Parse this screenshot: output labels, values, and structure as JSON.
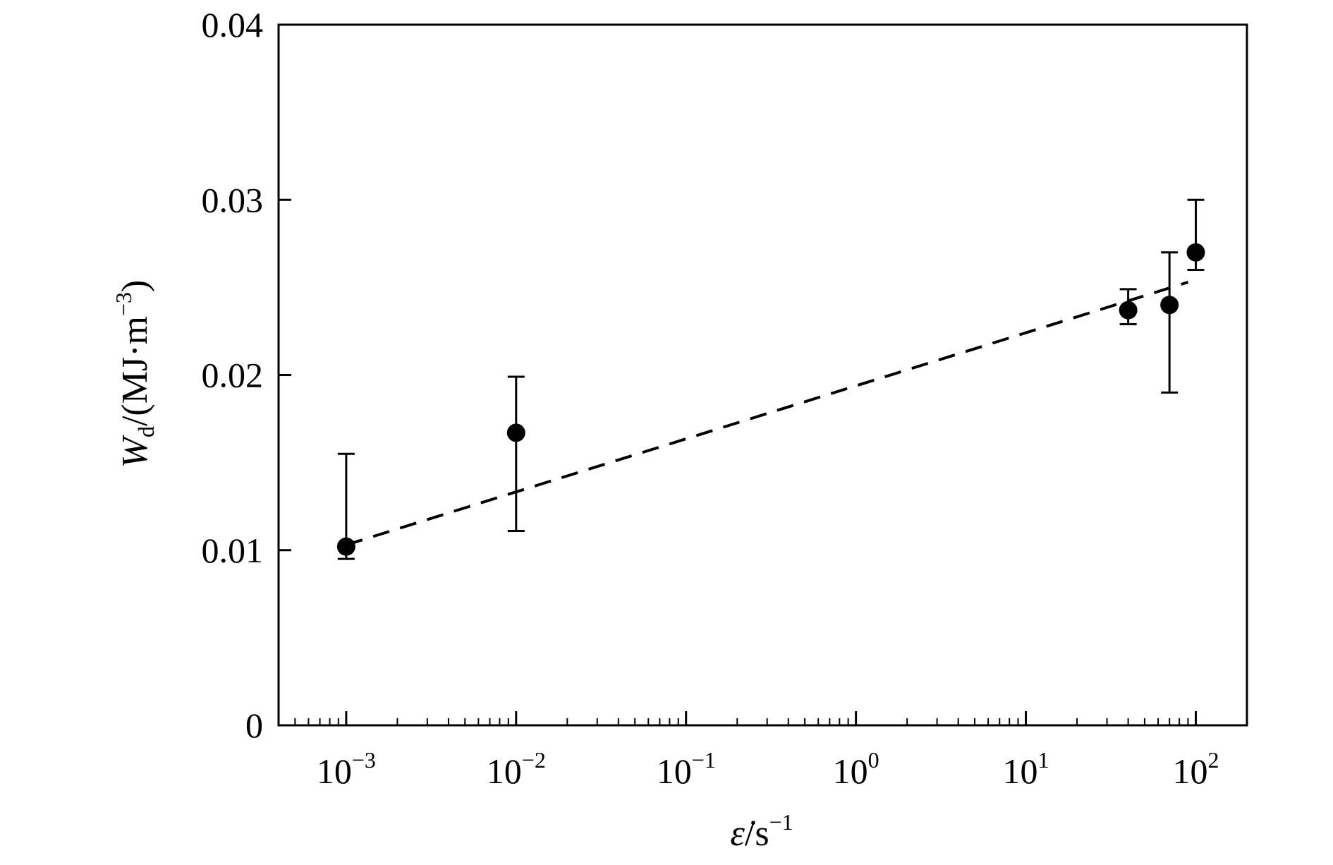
{
  "chart_data": {
    "type": "scatter",
    "xscale": "log",
    "xlim": [
      0.0004,
      200
    ],
    "ylim": [
      0,
      0.04
    ],
    "grid": false,
    "legend": "none",
    "xlabel": {
      "symbol": "ε̇",
      "unit": "/s",
      "unit_exponent": "−1"
    },
    "ylabel": {
      "symbol": "W",
      "subscript": "d",
      "unit": "/(MJ·m",
      "unit_exponent": "−3",
      "close": ")"
    },
    "xtick_base": "10",
    "xticks": [
      {
        "value": 0.001,
        "exponent": "−3"
      },
      {
        "value": 0.01,
        "exponent": "−2"
      },
      {
        "value": 0.1,
        "exponent": "−1"
      },
      {
        "value": 1,
        "exponent": "0"
      },
      {
        "value": 10,
        "exponent": "1"
      },
      {
        "value": 100,
        "exponent": "2"
      }
    ],
    "yticks": [
      {
        "value": 0,
        "label": "0"
      },
      {
        "value": 0.01,
        "label": "0.01"
      },
      {
        "value": 0.02,
        "label": "0.02"
      },
      {
        "value": 0.03,
        "label": "0.03"
      },
      {
        "value": 0.04,
        "label": "0.04"
      }
    ],
    "points": [
      {
        "x": 0.001,
        "y": 0.0102,
        "ylo": 0.0095,
        "yhi": 0.0155
      },
      {
        "x": 0.01,
        "y": 0.0167,
        "ylo": 0.0111,
        "yhi": 0.0199
      },
      {
        "x": 40,
        "y": 0.0237,
        "ylo": 0.0229,
        "yhi": 0.0249
      },
      {
        "x": 70,
        "y": 0.024,
        "ylo": 0.019,
        "yhi": 0.027
      },
      {
        "x": 100,
        "y": 0.027,
        "ylo": 0.026,
        "yhi": 0.03
      }
    ],
    "fit_line": {
      "style": "dashed",
      "from": {
        "x": 0.001,
        "y": 0.0103
      },
      "to": {
        "x": 90,
        "y": 0.0253
      }
    },
    "colors": {
      "marker": "#000000",
      "line": "#000000",
      "axis": "#000000"
    }
  }
}
